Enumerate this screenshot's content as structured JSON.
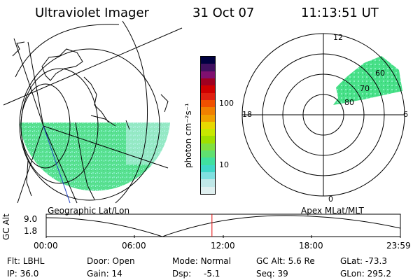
{
  "header": {
    "instrument": "Ultraviolet Imager",
    "date": "31 Oct 07",
    "time": "11:13:51 UT"
  },
  "map_left": {
    "caption": "Geographic Lat/Lon"
  },
  "colorbar": {
    "unit_label": "photon cm⁻²s⁻¹",
    "ticks": [
      "100",
      "10"
    ],
    "colors": [
      "#000040",
      "#401060",
      "#801070",
      "#a00020",
      "#d00000",
      "#e02010",
      "#f05000",
      "#f08000",
      "#f0a000",
      "#e8d800",
      "#c8e800",
      "#a0e000",
      "#80e040",
      "#60e070",
      "#40e0a0",
      "#40d8c8",
      "#80e0e0",
      "#c0e8e8",
      "#e0f0f0"
    ]
  },
  "polar": {
    "caption": "Apex MLat/MLT",
    "hour_labels": {
      "top": "12",
      "left": "18",
      "right": "6",
      "bottom": "0"
    },
    "lat_labels": [
      "60",
      "70",
      "80"
    ],
    "aurora_color": "#40e080"
  },
  "timeline": {
    "ylabel": "GC Alt",
    "ymax": "9.0",
    "ymin": "1.8",
    "xticks": [
      "00:00",
      "06:00",
      "12:00",
      "18:00",
      "23:59"
    ],
    "current_time_fraction": 0.468,
    "marker_color": "#e00000"
  },
  "status": {
    "flt_label": "Flt:",
    "flt_value": "LBHL",
    "ip_label": "IP:",
    "ip_value": "36.0",
    "door_label": "Door:",
    "door_value": "Open",
    "gain_label": "Gain:",
    "gain_value": "14",
    "mode_label": "Mode:",
    "mode_value": "Normal",
    "dsp_label": "Dsp:",
    "dsp_value": "-5.1",
    "gcalt_label": "GC Alt:",
    "gcalt_value": "5.6 Re",
    "seq_label": "Seq:",
    "seq_value": "39",
    "glat_label": "GLat:",
    "glat_value": "-73.3",
    "glon_label": "GLon:",
    "glon_value": "295.2"
  }
}
